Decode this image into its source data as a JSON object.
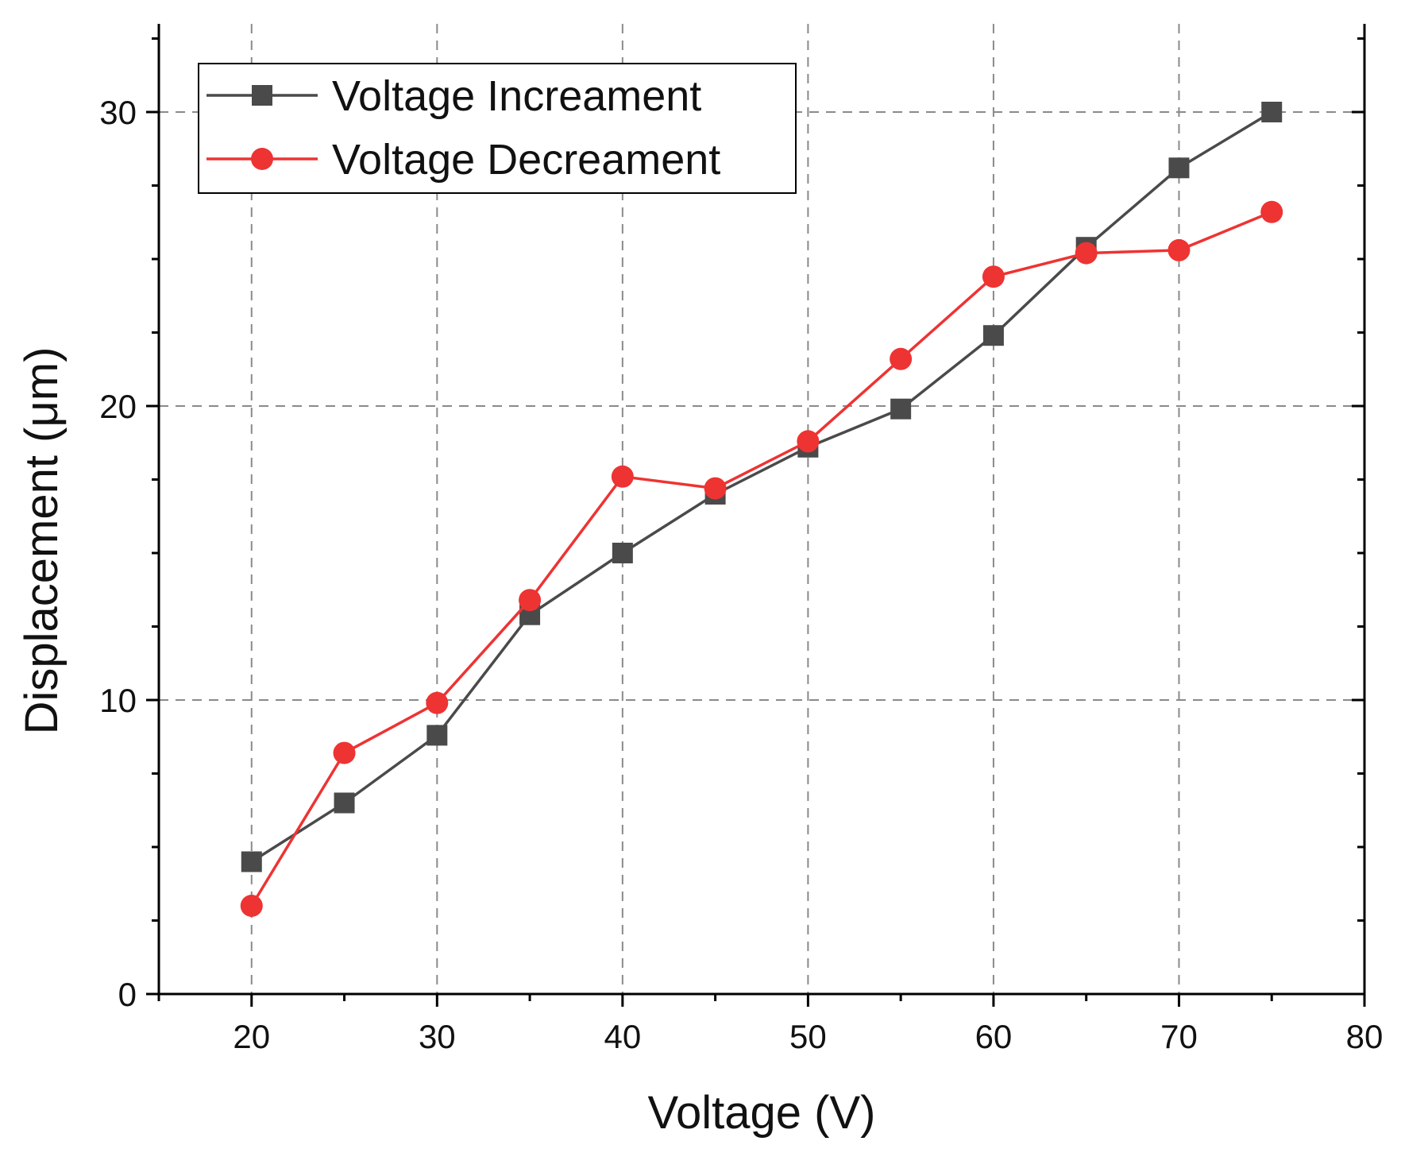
{
  "chart_data": {
    "type": "line",
    "title": "",
    "xlabel": "Voltage (V)",
    "ylabel": "Displacement (μm)",
    "xlim": [
      15,
      80
    ],
    "ylim": [
      0,
      33
    ],
    "xticks": [
      20,
      30,
      40,
      50,
      60,
      70,
      80
    ],
    "xtick_labels": [
      "20",
      "30",
      "40",
      "50",
      "60",
      "70",
      "80"
    ],
    "yticks": [
      0,
      10,
      20,
      30
    ],
    "ytick_labels": [
      "0",
      "10",
      "20",
      "30"
    ],
    "grid": true,
    "legend_position": "top-left",
    "x": [
      20,
      25,
      30,
      35,
      40,
      45,
      50,
      55,
      60,
      65,
      70,
      75
    ],
    "series": [
      {
        "name": "Voltage Increament",
        "color": "#4a4a4a",
        "marker": "square",
        "values": [
          4.5,
          6.5,
          8.8,
          12.9,
          15.0,
          17.0,
          18.6,
          19.9,
          22.4,
          25.4,
          28.1,
          30.0
        ]
      },
      {
        "name": "Voltage Decreament",
        "color": "#ee3333",
        "marker": "circle",
        "values": [
          3.0,
          8.2,
          9.9,
          13.4,
          17.6,
          17.2,
          18.8,
          21.6,
          24.4,
          25.2,
          25.3,
          26.6
        ]
      }
    ]
  }
}
